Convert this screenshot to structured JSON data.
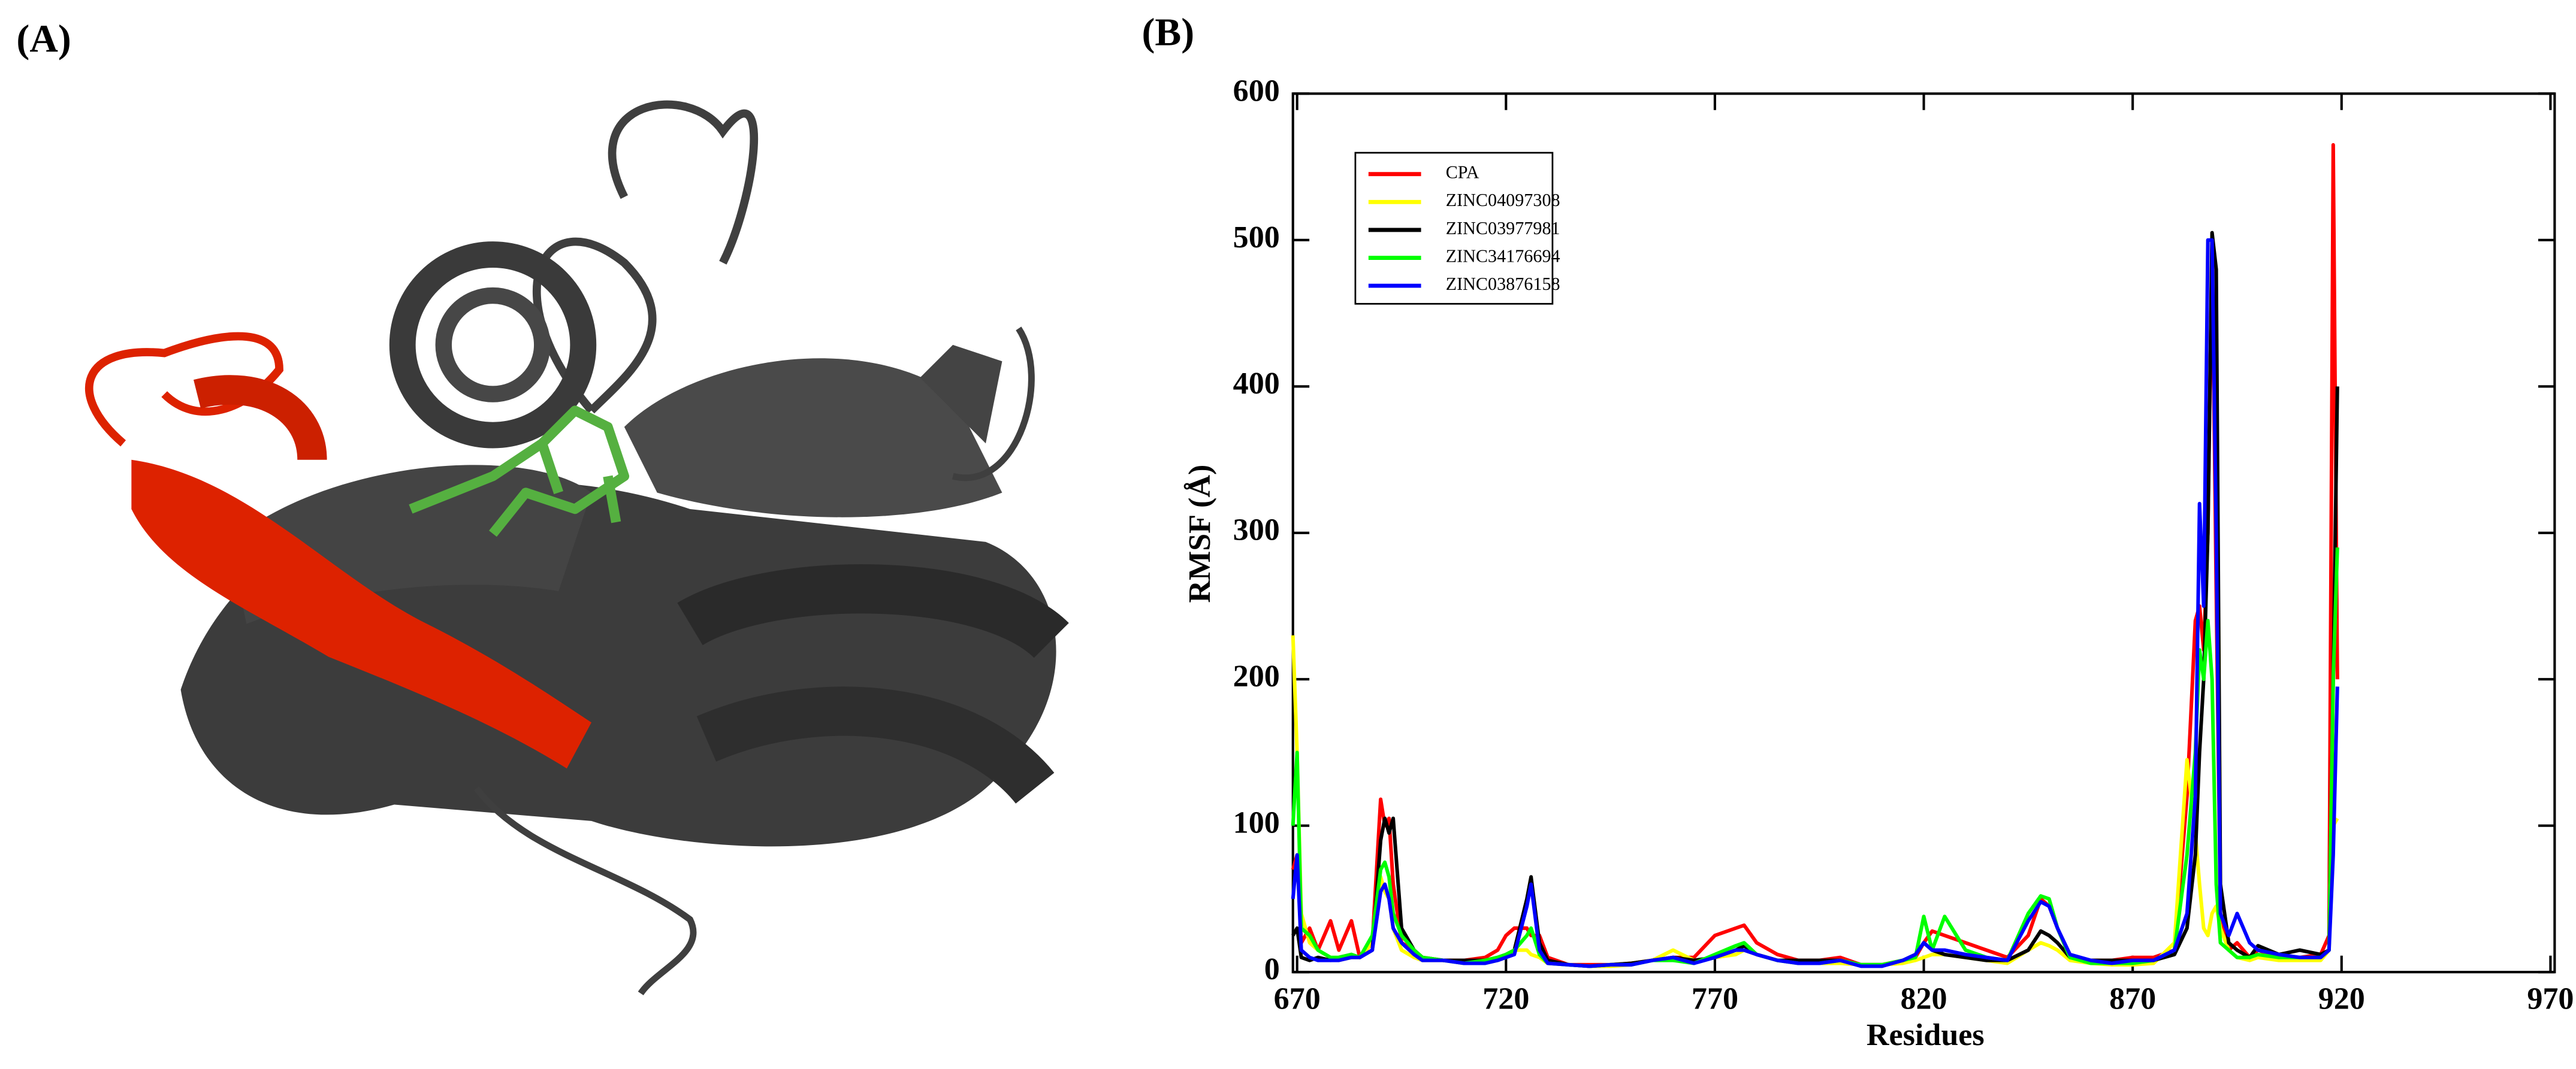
{
  "panels": {
    "a": {
      "label": "(A)"
    }
  },
  "chart_data": {
    "type": "line",
    "panel_label": "(B)",
    "x_label": "Residues",
    "y_label": "RMSF (Å)",
    "xlim": [
      669,
      971
    ],
    "ylim": [
      0,
      600
    ],
    "xticks": [
      670,
      720,
      770,
      820,
      870,
      920,
      970
    ],
    "yticks": [
      0,
      100,
      200,
      300,
      400,
      500,
      600
    ],
    "legend": "upper left",
    "x": [
      669,
      670,
      671,
      673,
      675,
      678,
      680,
      683,
      685,
      688,
      690,
      691,
      692,
      693,
      695,
      698,
      700,
      705,
      710,
      715,
      718,
      720,
      722,
      725,
      726,
      728,
      730,
      735,
      740,
      745,
      750,
      755,
      760,
      765,
      770,
      775,
      777,
      780,
      785,
      790,
      795,
      800,
      805,
      810,
      815,
      818,
      820,
      822,
      825,
      830,
      835,
      840,
      845,
      848,
      850,
      852,
      855,
      860,
      865,
      870,
      875,
      880,
      883,
      885,
      886,
      887,
      888,
      889,
      890,
      891,
      893,
      895,
      898,
      900,
      905,
      910,
      915,
      917,
      918,
      919
    ],
    "series": [
      {
        "name": "CPA",
        "color": "#ff0000",
        "values": [
          70,
          80,
          20,
          30,
          15,
          35,
          15,
          35,
          10,
          20,
          118,
          100,
          105,
          60,
          20,
          15,
          10,
          8,
          8,
          10,
          15,
          25,
          30,
          30,
          25,
          25,
          10,
          5,
          5,
          5,
          6,
          8,
          10,
          10,
          25,
          30,
          32,
          20,
          12,
          8,
          8,
          10,
          5,
          5,
          8,
          10,
          20,
          28,
          25,
          20,
          15,
          10,
          25,
          50,
          45,
          30,
          10,
          8,
          8,
          10,
          10,
          15,
          120,
          240,
          250,
          220,
          300,
          500,
          260,
          40,
          15,
          20,
          10,
          15,
          10,
          10,
          12,
          25,
          565,
          200
        ]
      },
      {
        "name": "ZINC04097308",
        "color": "#ffff00",
        "values": [
          230,
          150,
          40,
          20,
          15,
          10,
          8,
          10,
          10,
          20,
          65,
          55,
          50,
          30,
          15,
          10,
          8,
          8,
          6,
          6,
          8,
          10,
          15,
          15,
          12,
          10,
          6,
          5,
          4,
          4,
          5,
          8,
          15,
          8,
          10,
          12,
          15,
          12,
          8,
          6,
          6,
          6,
          5,
          5,
          6,
          8,
          10,
          12,
          12,
          10,
          8,
          6,
          15,
          20,
          18,
          15,
          8,
          6,
          5,
          5,
          6,
          20,
          145,
          95,
          60,
          30,
          25,
          40,
          45,
          30,
          15,
          10,
          8,
          10,
          8,
          8,
          8,
          15,
          100,
          105
        ]
      },
      {
        "name": "ZINC03977981",
        "color": "#000000",
        "values": [
          25,
          30,
          10,
          8,
          10,
          8,
          10,
          12,
          10,
          15,
          90,
          105,
          95,
          105,
          30,
          15,
          10,
          8,
          8,
          8,
          10,
          12,
          15,
          50,
          65,
          20,
          8,
          5,
          4,
          5,
          6,
          8,
          10,
          8,
          10,
          15,
          18,
          12,
          8,
          8,
          8,
          8,
          5,
          5,
          8,
          12,
          20,
          15,
          12,
          10,
          8,
          8,
          15,
          28,
          25,
          20,
          10,
          8,
          8,
          8,
          8,
          12,
          30,
          80,
          150,
          200,
          300,
          505,
          480,
          60,
          20,
          15,
          10,
          18,
          12,
          15,
          12,
          15,
          200,
          400
        ]
      },
      {
        "name": "ZINC34176694",
        "color": "#00ff00",
        "values": [
          100,
          150,
          30,
          25,
          15,
          10,
          10,
          12,
          10,
          25,
          70,
          75,
          65,
          40,
          25,
          15,
          10,
          8,
          6,
          8,
          10,
          12,
          15,
          25,
          30,
          12,
          6,
          5,
          4,
          5,
          5,
          8,
          8,
          6,
          12,
          18,
          20,
          12,
          8,
          6,
          6,
          8,
          5,
          5,
          8,
          10,
          38,
          15,
          38,
          15,
          10,
          8,
          40,
          52,
          50,
          30,
          10,
          6,
          6,
          6,
          8,
          15,
          80,
          150,
          220,
          200,
          240,
          200,
          60,
          20,
          15,
          10,
          10,
          12,
          10,
          10,
          10,
          15,
          200,
          290
        ]
      },
      {
        "name": "ZINC03876158",
        "color": "#0000ff",
        "values": [
          50,
          80,
          15,
          10,
          8,
          8,
          8,
          10,
          10,
          15,
          55,
          60,
          50,
          30,
          20,
          12,
          8,
          8,
          6,
          6,
          8,
          10,
          12,
          45,
          60,
          15,
          6,
          5,
          4,
          5,
          5,
          8,
          10,
          6,
          10,
          15,
          15,
          12,
          8,
          6,
          6,
          8,
          4,
          4,
          8,
          12,
          20,
          15,
          15,
          12,
          10,
          8,
          35,
          48,
          45,
          30,
          12,
          8,
          6,
          8,
          8,
          15,
          40,
          120,
          320,
          250,
          500,
          500,
          300,
          40,
          25,
          40,
          20,
          15,
          12,
          10,
          10,
          15,
          80,
          195
        ]
      }
    ]
  }
}
